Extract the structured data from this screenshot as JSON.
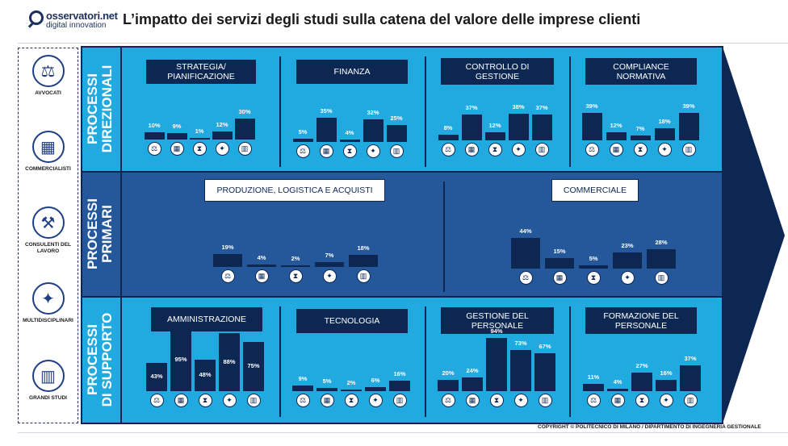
{
  "header": {
    "logo_line1": "osservatori.net",
    "logo_line2": "digital innovation",
    "title": "L’impatto dei servizi degli studi sulla catena del valore delle imprese clienti"
  },
  "legend": {
    "items": [
      {
        "label": "AVVOCATI",
        "icon": "scales-icon"
      },
      {
        "label": "COMMERCIALISTI",
        "icon": "calculator-document-icon"
      },
      {
        "label": "CONSULENTI DEL LAVORO",
        "icon": "toolbox-icon"
      },
      {
        "label": "MULTIDISCIPLINARI",
        "icon": "puzzle-icon"
      },
      {
        "label": "GRANDI STUDI",
        "icon": "buildings-icon"
      }
    ]
  },
  "bands": [
    {
      "label_line1": "PROCESSI",
      "label_line2": "DIREZIONALI",
      "color": "#21aadf"
    },
    {
      "label_line1": "PROCESSI",
      "label_line2": "PRIMARI",
      "color": "#24589b"
    },
    {
      "label_line1": "PROCESSI",
      "label_line2": "DI SUPPORTO",
      "color": "#21aadf"
    }
  ],
  "colors": {
    "bar": "#0d2753",
    "arrow": "#0d2753",
    "direzionali": "#21aadf",
    "primari": "#24589b",
    "supporto": "#21aadf"
  },
  "copyright": "COPYRIGHT © POLITECNICO DI MILANO / DIPARTIMENTO DI INGEGNERIA GESTIONALE",
  "chart_data": [
    {
      "type": "bar",
      "band": "PROCESSI DIREZIONALI",
      "title": "STRATEGIA/ PIANIFICAZIONE",
      "categories": [
        "Avvocati",
        "Commercialisti",
        "Consulenti del lavoro",
        "Multidisciplinari",
        "Grandi studi"
      ],
      "values": [
        10,
        9,
        1,
        12,
        30
      ],
      "labels": [
        "10%",
        "9%",
        "1%",
        "12%",
        "30%"
      ]
    },
    {
      "type": "bar",
      "band": "PROCESSI DIREZIONALI",
      "title": "FINANZA",
      "categories": [
        "Avvocati",
        "Commercialisti",
        "Consulenti del lavoro",
        "Multidisciplinari",
        "Grandi studi"
      ],
      "values": [
        5,
        35,
        4,
        32,
        25
      ],
      "labels": [
        "5%",
        "35%",
        "4%",
        "32%",
        "25%"
      ]
    },
    {
      "type": "bar",
      "band": "PROCESSI DIREZIONALI",
      "title": "CONTROLLO DI GESTIONE",
      "categories": [
        "Avvocati",
        "Commercialisti",
        "Consulenti del lavoro",
        "Multidisciplinari",
        "Grandi studi"
      ],
      "values": [
        8,
        37,
        12,
        38,
        37
      ],
      "labels": [
        "8%",
        "37%",
        "12%",
        "38%",
        "37%"
      ]
    },
    {
      "type": "bar",
      "band": "PROCESSI DIREZIONALI",
      "title": "COMPLIANCE NORMATIVA",
      "categories": [
        "Avvocati",
        "Commercialisti",
        "Consulenti del lavoro",
        "Multidisciplinari",
        "Grandi studi"
      ],
      "values": [
        39,
        12,
        7,
        18,
        39
      ],
      "labels": [
        "39%",
        "12%",
        "7%",
        "18%",
        "39%"
      ]
    },
    {
      "type": "bar",
      "band": "PROCESSI PRIMARI",
      "title": "PRODUZIONE, LOGISTICA E ACQUISTI",
      "categories": [
        "Avvocati",
        "Commercialisti",
        "Consulenti del lavoro",
        "Multidisciplinari",
        "Grandi studi"
      ],
      "values": [
        19,
        4,
        2,
        7,
        18
      ],
      "labels": [
        "19%",
        "4%",
        "2%",
        "7%",
        "18%"
      ]
    },
    {
      "type": "bar",
      "band": "PROCESSI PRIMARI",
      "title": "COMMERCIALE",
      "categories": [
        "Avvocati",
        "Commercialisti",
        "Consulenti del lavoro",
        "Multidisciplinari",
        "Grandi studi"
      ],
      "values": [
        44,
        15,
        5,
        23,
        28
      ],
      "labels": [
        "44%",
        "15%",
        "5%",
        "23%",
        "28%"
      ]
    },
    {
      "type": "bar",
      "band": "PROCESSI DI SUPPORTO",
      "title": "AMMINISTRAZIONE",
      "categories": [
        "Avvocati",
        "Commercialisti",
        "Consulenti del lavoro",
        "Multidisciplinari",
        "Grandi studi"
      ],
      "values": [
        43,
        95,
        48,
        88,
        75
      ],
      "labels": [
        "43%",
        "95%",
        "48%",
        "88%",
        "75%"
      ]
    },
    {
      "type": "bar",
      "band": "PROCESSI DI SUPPORTO",
      "title": "TECNOLOGIA",
      "categories": [
        "Avvocati",
        "Commercialisti",
        "Consulenti del lavoro",
        "Multidisciplinari",
        "Grandi studi"
      ],
      "values": [
        9,
        5,
        2,
        6,
        16
      ],
      "labels": [
        "9%",
        "5%",
        "2%",
        "6%",
        "16%"
      ]
    },
    {
      "type": "bar",
      "band": "PROCESSI DI SUPPORTO",
      "title": "GESTIONE DEL PERSONALE",
      "categories": [
        "Avvocati",
        "Commercialisti",
        "Consulenti del lavoro",
        "Multidisciplinari",
        "Grandi studi"
      ],
      "values": [
        20,
        24,
        94,
        73,
        67
      ],
      "labels": [
        "20%",
        "24%",
        "94%",
        "73%",
        "67%"
      ]
    },
    {
      "type": "bar",
      "band": "PROCESSI DI SUPPORTO",
      "title": "FORMAZIONE DEL PERSONALE",
      "categories": [
        "Avvocati",
        "Commercialisti",
        "Consulenti del lavoro",
        "Multidisciplinari",
        "Grandi studi"
      ],
      "values": [
        11,
        4,
        27,
        16,
        37
      ],
      "labels": [
        "11%",
        "4%",
        "27%",
        "16%",
        "37%"
      ]
    }
  ]
}
